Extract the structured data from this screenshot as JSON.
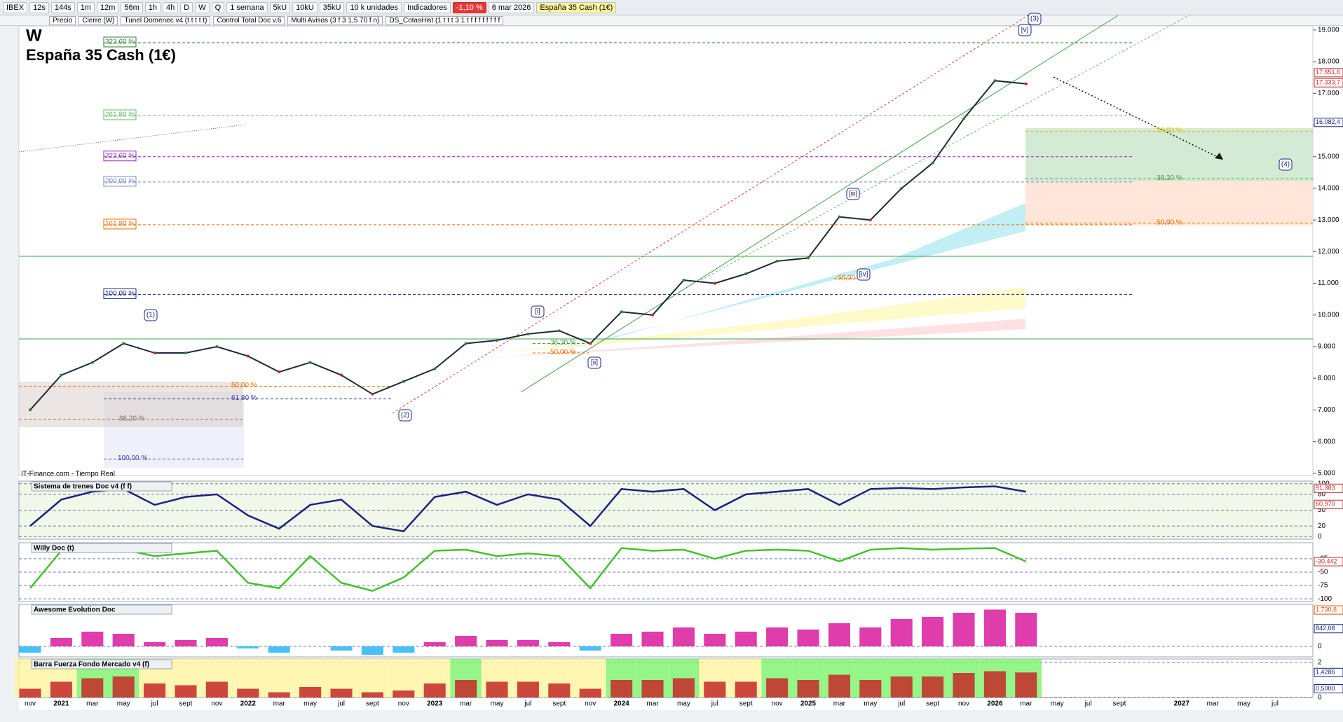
{
  "toolbar": {
    "symbol": "IBEX",
    "timeframes": [
      "12s",
      "144s",
      "1m",
      "12m",
      "56m",
      "1h",
      "4h",
      "D",
      "W",
      "Q"
    ],
    "period": "1 semana",
    "units": [
      "5kU",
      "10kU",
      "35kU"
    ],
    "units_label": "10 k unidades",
    "indicators": "Indicadores",
    "change": "-1,10 %",
    "date": "6 mar 2026",
    "instrument": "España 35 Cash (1€)"
  },
  "studies": [
    "Precio",
    "Cierre (W)",
    "Tunel Domenec v4 (t t t t t)",
    "Control Total Doc v.6",
    "Multi Avisos (3 f 3 1,5 70 f n)",
    "DS_CotasHist (1 t t t 3 1 t f f f f f f f f"
  ],
  "chart_data": [
    {
      "type": "line",
      "title": "W",
      "subtitle": "España 35 Cash (1€)",
      "source": "IT-Finance.com - Tiempo Real",
      "color": "#1b2a3a",
      "categories": [
        "nov",
        "2021",
        "mar",
        "may",
        "jul",
        "sept",
        "nov",
        "2022",
        "mar",
        "may",
        "jul",
        "sept",
        "nov",
        "2023",
        "mar",
        "may",
        "jul",
        "sept",
        "nov",
        "2024",
        "mar",
        "may",
        "jul",
        "sept",
        "nov",
        "2025",
        "mar",
        "may",
        "jul",
        "sept",
        "nov",
        "2026",
        "mar",
        "may",
        "jul",
        "sept",
        null,
        "2027",
        "mar",
        "may",
        "jul"
      ],
      "values": [
        7000,
        8100,
        8500,
        9100,
        8800,
        8800,
        9000,
        8700,
        8200,
        8500,
        8100,
        7500,
        7900,
        8300,
        9100,
        9200,
        9400,
        9500,
        9100,
        10100,
        10000,
        11100,
        11000,
        11300,
        11700,
        11800,
        13100,
        13000,
        14000,
        14800,
        16200,
        17400,
        17300,
        null,
        null,
        null,
        null,
        null,
        null,
        null,
        null
      ],
      "ylim": [
        4930,
        19130
      ],
      "yticks": [
        {
          "value": 5000,
          "label": "5.000"
        },
        {
          "value": 6000,
          "label": "6.000"
        },
        {
          "value": 7000,
          "label": "7.000"
        },
        {
          "value": 8000,
          "label": "8.000"
        },
        {
          "value": 9000,
          "label": "9.000"
        },
        {
          "value": 10000,
          "label": "10.000"
        },
        {
          "value": 11000,
          "label": "11.000"
        },
        {
          "value": 12000,
          "label": "12.000"
        },
        {
          "value": 13000,
          "label": "13.000"
        },
        {
          "value": 14000,
          "label": "14.000"
        },
        {
          "value": 15000,
          "label": "15.000"
        },
        {
          "value": 16000,
          "label": "16.000"
        },
        {
          "value": 17000,
          "label": "17.000"
        },
        {
          "value": 18000,
          "label": "18.000"
        },
        {
          "value": 19000,
          "label": "19.000"
        }
      ],
      "price_labels": [
        {
          "value": 17651.6,
          "label": "17.651,6",
          "color": "#c62828"
        },
        {
          "value": 17333.7,
          "label": "17.333,7",
          "color": "#c62828"
        },
        {
          "value": 16082.4,
          "label": "16.082,4",
          "color": "#1a237e"
        }
      ],
      "fib_levels": [
        {
          "value": 18600,
          "label": "323,60 %",
          "color": "#2e7d32"
        },
        {
          "value": 16300,
          "label": "261,80 %",
          "color": "#66bb6a"
        },
        {
          "value": 15000,
          "label": "223,60 %",
          "color": "#8e24aa"
        },
        {
          "value": 14200,
          "label": "200,00 %",
          "color": "#7986cb"
        },
        {
          "value": 12850,
          "label": "161,80 %",
          "color": "#ef6c00"
        },
        {
          "value": 10650,
          "label": "100,00 %",
          "color": "#1a237e"
        },
        {
          "value": 7750,
          "label": "50,00 %",
          "color": "#ef6c00"
        },
        {
          "value": 7350,
          "label": "61,80 %",
          "color": "#3949ab"
        },
        {
          "value": 6700,
          "label": "88,20 %",
          "color": "#8d6e63"
        },
        {
          "value": 5450,
          "label": "100,00 %",
          "color": "#3949ab"
        },
        {
          "value": 9100,
          "label": "38,20 %",
          "color": "#43a047"
        },
        {
          "value": 8800,
          "label": "50,00 %",
          "color": "#ef6c00"
        },
        {
          "value": 11150,
          "label": "50,00 %",
          "color": "#ef6c00"
        },
        {
          "value": 15800,
          "label": "23,60 %",
          "color": "#e0c000"
        },
        {
          "value": 14300,
          "label": "38,20 %",
          "color": "#43a047"
        },
        {
          "value": 12900,
          "label": "50,00 %",
          "color": "#ef6c00"
        }
      ],
      "wave_labels": [
        "(1)",
        "(2)",
        "(3)",
        "(4)",
        "[i]",
        "[ii]",
        "[iii]",
        "[iv]",
        "[v]"
      ]
    },
    {
      "type": "line",
      "title": "Sistema de trenes Doc v4 (f f)",
      "color": "#1a237e",
      "ylim": [
        -5,
        105
      ],
      "yticks": [
        0,
        20,
        50,
        80,
        100
      ],
      "values": [
        20,
        70,
        85,
        90,
        60,
        75,
        80,
        40,
        15,
        60,
        70,
        20,
        10,
        75,
        85,
        60,
        80,
        70,
        20,
        90,
        85,
        90,
        50,
        80,
        85,
        90,
        60,
        90,
        92,
        90,
        93,
        95,
        85
      ],
      "last_labels": [
        {
          "value": 91.383,
          "label": "91,383",
          "color": "#c62828"
        },
        {
          "value": 60.97,
          "label": "60,970",
          "color": "#c62828"
        }
      ]
    },
    {
      "type": "line",
      "title": "Willy Doc (t)",
      "color": "#43c22a",
      "ylim": [
        -105,
        5
      ],
      "yticks": [
        -25,
        -50,
        -75,
        -100
      ],
      "values": [
        -80,
        -10,
        -10,
        -8,
        -20,
        -15,
        -10,
        -70,
        -80,
        -20,
        -70,
        -85,
        -60,
        -10,
        -8,
        -20,
        -15,
        -20,
        -80,
        -5,
        -10,
        -8,
        -25,
        -10,
        -8,
        -10,
        -30,
        -8,
        -5,
        -8,
        -6,
        -5,
        -30
      ],
      "last_labels": [
        {
          "value": -30.442,
          "label": "-30,442",
          "color": "#c62828"
        }
      ]
    },
    {
      "type": "bar",
      "title": "Awesome Evolution Doc",
      "color": "#d81b9c",
      "ylim": [
        -500,
        2000
      ],
      "yticks": [
        0
      ],
      "values": [
        -300,
        400,
        700,
        600,
        200,
        300,
        400,
        -100,
        -300,
        0,
        -200,
        -400,
        -300,
        200,
        500,
        300,
        300,
        200,
        -200,
        600,
        700,
        900,
        600,
        700,
        900,
        800,
        1100,
        900,
        1300,
        1400,
        1600,
        1750,
        1600
      ],
      "last_labels": [
        {
          "value": 1730.8,
          "label": "1.730,8",
          "color": "#e65100"
        },
        {
          "value": 842.08,
          "label": "842,08",
          "color": "#1a237e"
        }
      ]
    },
    {
      "type": "bar",
      "title": "Barra Fuerza Fondo Mercado v4 (f)",
      "color": "#c62828",
      "ylim": [
        0,
        2.2
      ],
      "yticks": [
        0,
        2
      ],
      "values": [
        0.5,
        0.9,
        1.1,
        1.2,
        0.8,
        0.7,
        0.9,
        0.5,
        0.3,
        0.6,
        0.5,
        0.3,
        0.4,
        0.8,
        1.0,
        0.9,
        0.9,
        0.8,
        0.5,
        1.0,
        1.0,
        1.1,
        0.9,
        0.9,
        1.1,
        1.0,
        1.3,
        1.0,
        1.2,
        1.2,
        1.4,
        1.5,
        1.4286
      ],
      "last_labels": [
        {
          "value": 1.4286,
          "label": "1,4286",
          "color": "#1a237e"
        },
        {
          "value": 0.5,
          "label": "0,5000",
          "color": "#1a237e"
        }
      ]
    }
  ]
}
